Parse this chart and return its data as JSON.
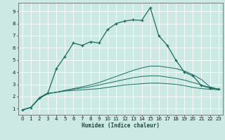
{
  "xlabel": "Humidex (Indice chaleur)",
  "background_color": "#cce9e4",
  "grid_color": "#ffffff",
  "line_color": "#1a6b60",
  "xlim": [
    -0.5,
    23.5
  ],
  "ylim": [
    0.5,
    9.7
  ],
  "xticks": [
    0,
    1,
    2,
    3,
    4,
    5,
    6,
    7,
    8,
    9,
    10,
    11,
    12,
    13,
    14,
    15,
    16,
    17,
    18,
    19,
    20,
    21,
    22,
    23
  ],
  "yticks": [
    1,
    2,
    3,
    4,
    5,
    6,
    7,
    8,
    9
  ],
  "series": [
    {
      "x": [
        0,
        1,
        2,
        3,
        4,
        5,
        6,
        7,
        8,
        9,
        10,
        11,
        12,
        13,
        14,
        15,
        16,
        17,
        18,
        19,
        20,
        21,
        22,
        23
      ],
      "y": [
        0.9,
        1.1,
        1.9,
        2.3,
        4.3,
        5.3,
        6.4,
        6.2,
        6.5,
        6.4,
        7.5,
        8.0,
        8.2,
        8.3,
        8.25,
        9.3,
        7.0,
        6.2,
        5.0,
        4.0,
        3.7,
        2.9,
        2.7,
        2.6
      ],
      "marker": true
    },
    {
      "x": [
        0,
        1,
        2,
        3,
        4,
        5,
        6,
        7,
        8,
        9,
        10,
        11,
        12,
        13,
        14,
        15,
        16,
        17,
        18,
        19,
        20,
        21,
        22,
        23
      ],
      "y": [
        0.9,
        1.1,
        1.85,
        2.25,
        2.35,
        2.45,
        2.5,
        2.55,
        2.6,
        2.65,
        2.75,
        2.85,
        2.95,
        3.0,
        3.05,
        3.1,
        3.1,
        3.05,
        3.0,
        2.9,
        2.75,
        2.65,
        2.6,
        2.55
      ],
      "marker": false
    },
    {
      "x": [
        0,
        1,
        2,
        3,
        4,
        5,
        6,
        7,
        8,
        9,
        10,
        11,
        12,
        13,
        14,
        15,
        16,
        17,
        18,
        19,
        20,
        21,
        22,
        23
      ],
      "y": [
        0.9,
        1.1,
        1.85,
        2.25,
        2.35,
        2.5,
        2.6,
        2.7,
        2.8,
        2.95,
        3.1,
        3.25,
        3.4,
        3.55,
        3.65,
        3.7,
        3.7,
        3.6,
        3.5,
        3.35,
        3.15,
        2.95,
        2.75,
        2.6
      ],
      "marker": false
    },
    {
      "x": [
        0,
        1,
        2,
        3,
        4,
        5,
        6,
        7,
        8,
        9,
        10,
        11,
        12,
        13,
        14,
        15,
        16,
        17,
        18,
        19,
        20,
        21,
        22,
        23
      ],
      "y": [
        0.9,
        1.1,
        1.85,
        2.25,
        2.35,
        2.5,
        2.65,
        2.8,
        2.95,
        3.15,
        3.4,
        3.65,
        3.9,
        4.15,
        4.35,
        4.5,
        4.5,
        4.4,
        4.3,
        4.1,
        3.8,
        3.4,
        2.8,
        2.6
      ],
      "marker": false
    }
  ]
}
